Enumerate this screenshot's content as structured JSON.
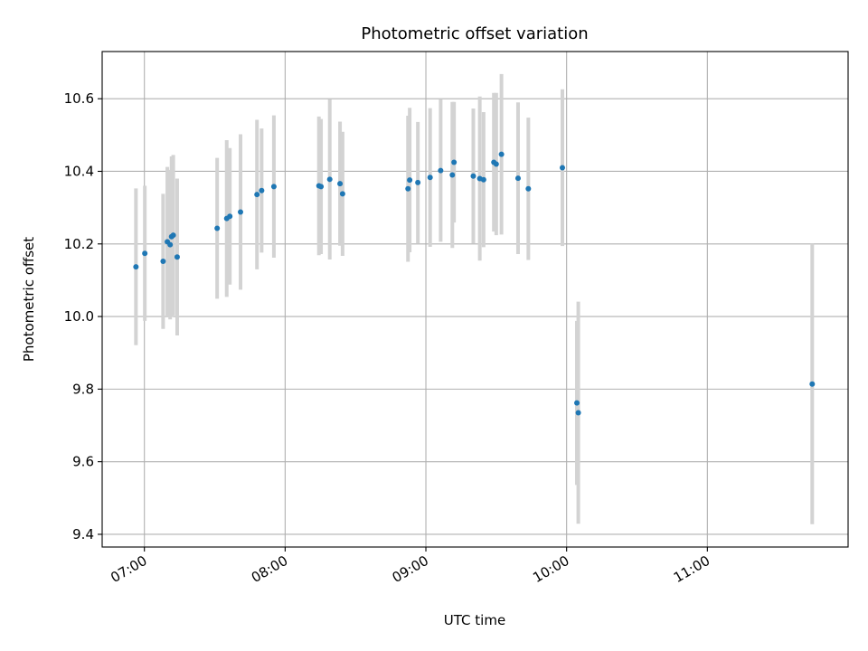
{
  "chart_data": {
    "type": "scatter",
    "title": "Photometric offset variation",
    "xlabel": "UTC time",
    "ylabel": "Photometric offset",
    "x_tick_labels": [
      "07:00",
      "08:00",
      "09:00",
      "10:00",
      "11:00"
    ],
    "x_tick_hours": [
      7,
      8,
      9,
      10,
      11
    ],
    "xlim_hours": [
      6.7,
      12.0
    ],
    "ylim": [
      9.365,
      10.73
    ],
    "y_ticks": [
      9.4,
      9.6,
      9.8,
      10.0,
      10.2,
      10.4,
      10.6
    ],
    "y_tick_labels": [
      "9.4",
      "9.6",
      "9.8",
      "10.0",
      "10.2",
      "10.4",
      "10.6"
    ],
    "grid": true,
    "point_color": "#1f77b4",
    "errorbar_color": "#d3d3d3",
    "points": [
      {
        "t": 6.94,
        "y": 10.137,
        "err": 0.216
      },
      {
        "t": 7.003,
        "y": 10.174,
        "err": 0.186
      },
      {
        "t": 7.133,
        "y": 10.152,
        "err": 0.186
      },
      {
        "t": 7.163,
        "y": 10.206,
        "err": 0.206
      },
      {
        "t": 7.183,
        "y": 10.198,
        "err": 0.206
      },
      {
        "t": 7.193,
        "y": 10.22,
        "err": 0.221
      },
      {
        "t": 7.205,
        "y": 10.224,
        "err": 0.221
      },
      {
        "t": 7.233,
        "y": 10.164,
        "err": 0.216
      },
      {
        "t": 7.517,
        "y": 10.243,
        "err": 0.194
      },
      {
        "t": 7.585,
        "y": 10.27,
        "err": 0.216
      },
      {
        "t": 7.607,
        "y": 10.276,
        "err": 0.188
      },
      {
        "t": 7.683,
        "y": 10.288,
        "err": 0.214
      },
      {
        "t": 7.8,
        "y": 10.336,
        "err": 0.206
      },
      {
        "t": 7.833,
        "y": 10.347,
        "err": 0.171
      },
      {
        "t": 7.92,
        "y": 10.358,
        "err": 0.196
      },
      {
        "t": 8.24,
        "y": 10.36,
        "err": 0.191
      },
      {
        "t": 8.255,
        "y": 10.358,
        "err": 0.186
      },
      {
        "t": 8.317,
        "y": 10.378,
        "err": 0.221
      },
      {
        "t": 8.39,
        "y": 10.366,
        "err": 0.171
      },
      {
        "t": 8.408,
        "y": 10.338,
        "err": 0.171
      },
      {
        "t": 8.873,
        "y": 10.352,
        "err": 0.201
      },
      {
        "t": 8.885,
        "y": 10.376,
        "err": 0.199
      },
      {
        "t": 8.943,
        "y": 10.369,
        "err": 0.167
      },
      {
        "t": 9.03,
        "y": 10.383,
        "err": 0.191
      },
      {
        "t": 9.105,
        "y": 10.402,
        "err": 0.196
      },
      {
        "t": 9.188,
        "y": 10.39,
        "err": 0.201
      },
      {
        "t": 9.2,
        "y": 10.425,
        "err": 0.166
      },
      {
        "t": 9.337,
        "y": 10.387,
        "err": 0.186
      },
      {
        "t": 9.383,
        "y": 10.38,
        "err": 0.226
      },
      {
        "t": 9.41,
        "y": 10.377,
        "err": 0.186
      },
      {
        "t": 9.483,
        "y": 10.425,
        "err": 0.191
      },
      {
        "t": 9.5,
        "y": 10.42,
        "err": 0.196
      },
      {
        "t": 9.537,
        "y": 10.447,
        "err": 0.221
      },
      {
        "t": 9.655,
        "y": 10.381,
        "err": 0.209
      },
      {
        "t": 9.728,
        "y": 10.352,
        "err": 0.196
      },
      {
        "t": 9.97,
        "y": 10.41,
        "err": 0.216
      },
      {
        "t": 10.073,
        "y": 9.762,
        "err": 0.226
      },
      {
        "t": 10.083,
        "y": 9.735,
        "err": 0.306
      },
      {
        "t": 11.745,
        "y": 9.814,
        "err": 0.386
      }
    ]
  }
}
